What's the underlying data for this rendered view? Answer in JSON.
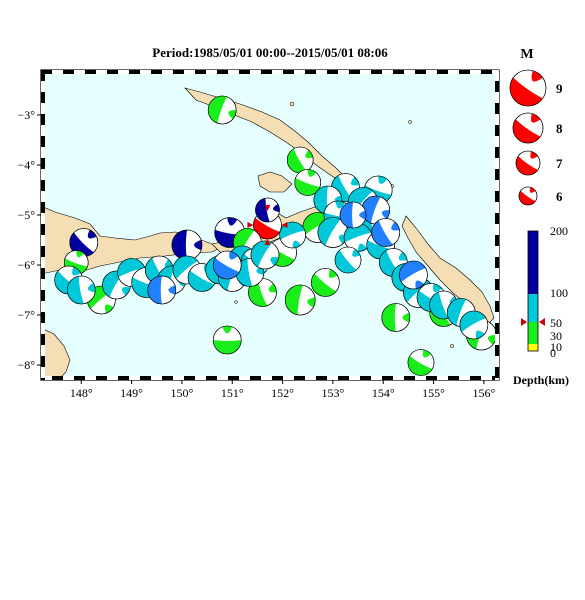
{
  "title": "Period:1985/05/01 00:00--2015/05/01 08:06",
  "colors": {
    "ocean": "#e6ffff",
    "land": "#f5deb3",
    "deep": "#0000a0",
    "intermediate": "#00c8d8",
    "shallow": "#1aee1a",
    "mid": "#2080ff",
    "veryshallow": "#ffff00",
    "legend": "#ff0000",
    "selected": "#ff0000",
    "marker": "#cc0000"
  },
  "x_ticks": [
    "148°",
    "149°",
    "150°",
    "151°",
    "152°",
    "153°",
    "154°",
    "155°",
    "156°"
  ],
  "y_ticks": [
    "−3°",
    "−4°",
    "−5°",
    "−6°",
    "−7°",
    "−8°"
  ],
  "magnitude_legend": {
    "title": "M",
    "items": [
      "9",
      "8",
      "7",
      "6"
    ]
  },
  "depth_scale": {
    "labels": [
      "200",
      "100",
      "50",
      "30",
      "10",
      "0"
    ],
    "title": "Depth(km)"
  },
  "events": [
    {
      "lon": 151.7,
      "lat": -5.2,
      "color": "selected",
      "r": 14,
      "a": 30
    },
    {
      "lon": 150.1,
      "lat": -5.6,
      "color": "deep",
      "r": 15,
      "a": 90
    },
    {
      "lon": 148.05,
      "lat": -5.55,
      "color": "deep",
      "r": 14,
      "a": 45
    },
    {
      "lon": 150.95,
      "lat": -5.35,
      "color": "deep",
      "r": 15,
      "a": 10
    },
    {
      "lon": 151.7,
      "lat": -4.9,
      "color": "deep",
      "r": 12,
      "a": 80
    },
    {
      "lon": 150.8,
      "lat": -2.9,
      "color": "shallow",
      "r": 14,
      "a": 110
    },
    {
      "lon": 152.35,
      "lat": -3.9,
      "color": "shallow",
      "r": 13,
      "a": 60
    },
    {
      "lon": 147.9,
      "lat": -5.95,
      "color": "shallow",
      "r": 12,
      "a": 20
    },
    {
      "lon": 148.4,
      "lat": -6.7,
      "color": "shallow",
      "r": 14,
      "a": 140
    },
    {
      "lon": 151.6,
      "lat": -6.55,
      "color": "shallow",
      "r": 14,
      "a": 70
    },
    {
      "lon": 152.35,
      "lat": -6.7,
      "color": "shallow",
      "r": 15,
      "a": 100
    },
    {
      "lon": 152.85,
      "lat": -6.35,
      "color": "shallow",
      "r": 14,
      "a": 40
    },
    {
      "lon": 151.3,
      "lat": -5.55,
      "color": "shallow",
      "r": 14,
      "a": 120
    },
    {
      "lon": 152.0,
      "lat": -5.75,
      "color": "shallow",
      "r": 14,
      "a": 30
    },
    {
      "lon": 152.7,
      "lat": -5.25,
      "color": "shallow",
      "r": 15,
      "a": 150
    },
    {
      "lon": 152.5,
      "lat": -4.35,
      "color": "shallow",
      "r": 13,
      "a": 20
    },
    {
      "lon": 154.25,
      "lat": -7.05,
      "color": "shallow",
      "r": 14,
      "a": 90
    },
    {
      "lon": 150.9,
      "lat": -7.5,
      "color": "shallow",
      "r": 14,
      "a": 0
    },
    {
      "lon": 155.2,
      "lat": -6.95,
      "color": "shallow",
      "r": 14,
      "a": 60
    },
    {
      "lon": 155.95,
      "lat": -7.4,
      "color": "shallow",
      "r": 15,
      "a": 110
    },
    {
      "lon": 154.75,
      "lat": -7.95,
      "color": "shallow",
      "r": 13,
      "a": 30
    },
    {
      "lon": 153.9,
      "lat": -4.5,
      "color": "intermediate",
      "r": 14,
      "a": 20
    },
    {
      "lon": 153.25,
      "lat": -4.45,
      "color": "intermediate",
      "r": 14,
      "a": 60
    },
    {
      "lon": 152.9,
      "lat": -4.7,
      "color": "intermediate",
      "r": 14,
      "a": 90
    },
    {
      "lon": 153.6,
      "lat": -4.75,
      "color": "intermediate",
      "r": 15,
      "a": 130
    },
    {
      "lon": 153.1,
      "lat": -5.0,
      "color": "intermediate",
      "r": 14,
      "a": 10
    },
    {
      "lon": 153.45,
      "lat": -5.1,
      "color": "intermediate",
      "r": 15,
      "a": 40
    },
    {
      "lon": 153.8,
      "lat": -5.25,
      "color": "intermediate",
      "r": 14,
      "a": 80
    },
    {
      "lon": 153.0,
      "lat": -5.35,
      "color": "intermediate",
      "r": 15,
      "a": 120
    },
    {
      "lon": 153.5,
      "lat": -5.45,
      "color": "intermediate",
      "r": 14,
      "a": 160
    },
    {
      "lon": 153.95,
      "lat": -5.6,
      "color": "intermediate",
      "r": 14,
      "a": 20
    },
    {
      "lon": 154.2,
      "lat": -5.95,
      "color": "intermediate",
      "r": 14,
      "a": 60
    },
    {
      "lon": 154.45,
      "lat": -6.25,
      "color": "intermediate",
      "r": 14,
      "a": 100
    },
    {
      "lon": 154.7,
      "lat": -6.55,
      "color": "intermediate",
      "r": 15,
      "a": 140
    },
    {
      "lon": 154.95,
      "lat": -6.65,
      "color": "intermediate",
      "r": 14,
      "a": 30
    },
    {
      "lon": 155.2,
      "lat": -6.8,
      "color": "intermediate",
      "r": 14,
      "a": 70
    },
    {
      "lon": 155.55,
      "lat": -6.95,
      "color": "intermediate",
      "r": 14,
      "a": 110
    },
    {
      "lon": 155.8,
      "lat": -7.2,
      "color": "intermediate",
      "r": 14,
      "a": 150
    },
    {
      "lon": 147.75,
      "lat": -6.3,
      "color": "intermediate",
      "r": 14,
      "a": 40
    },
    {
      "lon": 148.0,
      "lat": -6.5,
      "color": "intermediate",
      "r": 14,
      "a": 80
    },
    {
      "lon": 148.7,
      "lat": -6.4,
      "color": "intermediate",
      "r": 14,
      "a": 120
    },
    {
      "lon": 149.0,
      "lat": -6.15,
      "color": "intermediate",
      "r": 14,
      "a": 160
    },
    {
      "lon": 149.3,
      "lat": -6.35,
      "color": "intermediate",
      "r": 15,
      "a": 20
    },
    {
      "lon": 149.55,
      "lat": -6.1,
      "color": "intermediate",
      "r": 14,
      "a": 60
    },
    {
      "lon": 149.8,
      "lat": -6.3,
      "color": "intermediate",
      "r": 14,
      "a": 100
    },
    {
      "lon": 150.1,
      "lat": -6.1,
      "color": "intermediate",
      "r": 14,
      "a": 140
    },
    {
      "lon": 150.4,
      "lat": -6.25,
      "color": "intermediate",
      "r": 14,
      "a": 30
    },
    {
      "lon": 150.75,
      "lat": -6.1,
      "color": "intermediate",
      "r": 14,
      "a": 70
    },
    {
      "lon": 151.0,
      "lat": -6.25,
      "color": "intermediate",
      "r": 14,
      "a": 110
    },
    {
      "lon": 151.2,
      "lat": -5.9,
      "color": "intermediate",
      "r": 14,
      "a": 150
    },
    {
      "lon": 151.45,
      "lat": -5.95,
      "color": "intermediate",
      "r": 14,
      "a": 40
    },
    {
      "lon": 151.35,
      "lat": -6.15,
      "color": "intermediate",
      "r": 14,
      "a": 80
    },
    {
      "lon": 151.65,
      "lat": -5.8,
      "color": "intermediate",
      "r": 14,
      "a": 120
    },
    {
      "lon": 152.2,
      "lat": -5.4,
      "color": "intermediate",
      "r": 13,
      "a": 160
    },
    {
      "lon": 153.3,
      "lat": -5.9,
      "color": "intermediate",
      "r": 13,
      "a": 50
    },
    {
      "lon": 149.6,
      "lat": -6.5,
      "color": "mid",
      "r": 14,
      "a": 90
    },
    {
      "lon": 150.9,
      "lat": -6.0,
      "color": "mid",
      "r": 14,
      "a": 30
    },
    {
      "lon": 153.85,
      "lat": -4.9,
      "color": "mid",
      "r": 14,
      "a": 110
    },
    {
      "lon": 154.05,
      "lat": -5.35,
      "color": "mid",
      "r": 14,
      "a": 60
    },
    {
      "lon": 154.6,
      "lat": -6.2,
      "color": "mid",
      "r": 14,
      "a": 150
    },
    {
      "lon": 153.4,
      "lat": -5.0,
      "color": "mid",
      "r": 13,
      "a": 90
    }
  ]
}
